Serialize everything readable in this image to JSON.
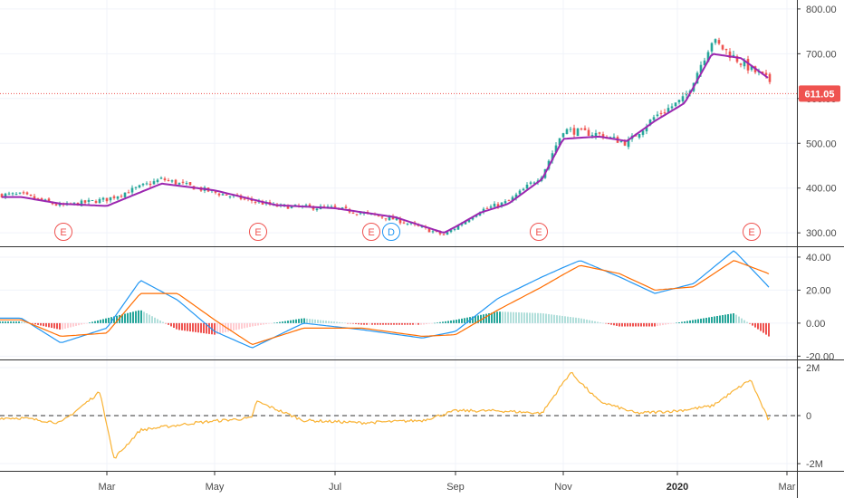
{
  "colors": {
    "up": "#26a69a",
    "down": "#ef5350",
    "ma": "#9c27b0",
    "macd": "#2196f3",
    "signal": "#ff6d00",
    "hist_up_strong": "#26a69a",
    "hist_up_weak": "#b2dfdb",
    "hist_down_strong": "#ef5350",
    "hist_down_weak": "#ffcdd2",
    "volume_osc": "#f9b233",
    "last_price": "#ef5350",
    "grid": "#f0f3fa",
    "earnings": "#ef5350",
    "dividend": "#2196f3"
  },
  "last_price_label": "611.05",
  "x_axis_labels": [
    "Mar",
    "May",
    "Jul",
    "Sep",
    "Nov",
    "2020",
    "Mar"
  ],
  "events": [
    {
      "label": "E",
      "kind": "earnings"
    },
    {
      "label": "E",
      "kind": "earnings"
    },
    {
      "label": "E",
      "kind": "earnings"
    },
    {
      "label": "D",
      "kind": "dividend"
    },
    {
      "label": "E",
      "kind": "earnings"
    },
    {
      "label": "E",
      "kind": "earnings"
    }
  ],
  "chart_data": [
    {
      "type": "candlestick",
      "panel": "price",
      "title": "",
      "y_ticks": [
        "800.00",
        "700.00",
        "600.00",
        "500.00",
        "400.00",
        "300.00"
      ],
      "ylim": [
        270,
        820
      ],
      "last_price": 611.05,
      "x_dates": [
        "2019-01-08",
        "2019-02-01",
        "2019-03-01",
        "2019-04-01",
        "2019-05-01",
        "2019-06-01",
        "2019-07-01",
        "2019-08-01",
        "2019-08-26",
        "2019-09-15",
        "2019-10-01",
        "2019-10-20",
        "2019-11-01",
        "2019-11-20",
        "2019-12-05",
        "2019-12-20",
        "2020-01-05",
        "2020-01-20",
        "2020-02-05",
        "2020-02-20",
        "2020-03-03"
      ],
      "x_values": [
        385,
        360,
        375,
        420,
        390,
        360,
        355,
        330,
        295,
        350,
        370,
        430,
        530,
        520,
        500,
        560,
        600,
        730,
        680,
        640,
        611
      ],
      "series": [
        {
          "name": "",
          "values": [
            385,
            360,
            375,
            420,
            390,
            360,
            355,
            330,
            295,
            350,
            370,
            430,
            530,
            520,
            500,
            560,
            600,
            730,
            680,
            640,
            611
          ]
        }
      ],
      "moving_average": [
        380,
        365,
        360,
        410,
        395,
        362,
        355,
        335,
        300,
        345,
        365,
        420,
        510,
        515,
        505,
        550,
        590,
        700,
        690,
        645,
        615
      ]
    },
    {
      "type": "bar",
      "panel": "macd",
      "title": "",
      "y_ticks": [
        "40.00",
        "20.00",
        "0.00",
        "-20.00"
      ],
      "ylim": [
        -22,
        46
      ],
      "x_dates": [
        "2019-01-08",
        "2019-02-01",
        "2019-03-01",
        "2019-03-20",
        "2019-04-10",
        "2019-05-01",
        "2019-05-20",
        "2019-06-15",
        "2019-07-15",
        "2019-08-15",
        "2019-09-01",
        "2019-09-25",
        "2019-10-20",
        "2019-11-10",
        "2019-12-01",
        "2019-12-20",
        "2020-01-10",
        "2020-02-01",
        "2020-02-20",
        "2020-03-03"
      ],
      "series": [
        {
          "name": "",
          "values": [
            3,
            -12,
            -3,
            26,
            14,
            -5,
            -15,
            0,
            -4,
            -9,
            -5,
            15,
            28,
            38,
            28,
            18,
            24,
            44,
            22,
            -10
          ]
        },
        {
          "name": "",
          "values": [
            2,
            -8,
            -6,
            18,
            18,
            2,
            -13,
            -3,
            -3,
            -8,
            -7,
            8,
            22,
            35,
            30,
            20,
            22,
            38,
            30,
            5
          ]
        }
      ]
    },
    {
      "type": "line",
      "panel": "oscillator",
      "title": "",
      "y_ticks": [
        "2M",
        "0",
        "-2M"
      ],
      "ylim": [
        -2.3,
        2.3
      ],
      "x_dates": [
        "2019-01-08",
        "2019-02-01",
        "2019-02-25",
        "2019-03-05",
        "2019-03-20",
        "2019-04-20",
        "2019-05-20",
        "2019-05-22",
        "2019-06-15",
        "2019-07-15",
        "2019-08-15",
        "2019-09-01",
        "2019-09-25",
        "2019-10-20",
        "2019-11-05",
        "2019-11-20",
        "2019-12-10",
        "2020-01-01",
        "2020-01-20",
        "2020-02-10",
        "2020-02-20",
        "2020-03-01",
        "2020-03-03"
      ],
      "series": [
        {
          "name": "",
          "values": [
            -0.1,
            -0.3,
            1.0,
            -1.8,
            -0.6,
            -0.3,
            -0.1,
            0.6,
            -0.2,
            -0.3,
            -0.2,
            0.2,
            0.2,
            0.1,
            1.8,
            0.6,
            0.1,
            0.2,
            0.4,
            1.5,
            -0.2,
            1.1,
            0.0
          ]
        }
      ]
    }
  ]
}
